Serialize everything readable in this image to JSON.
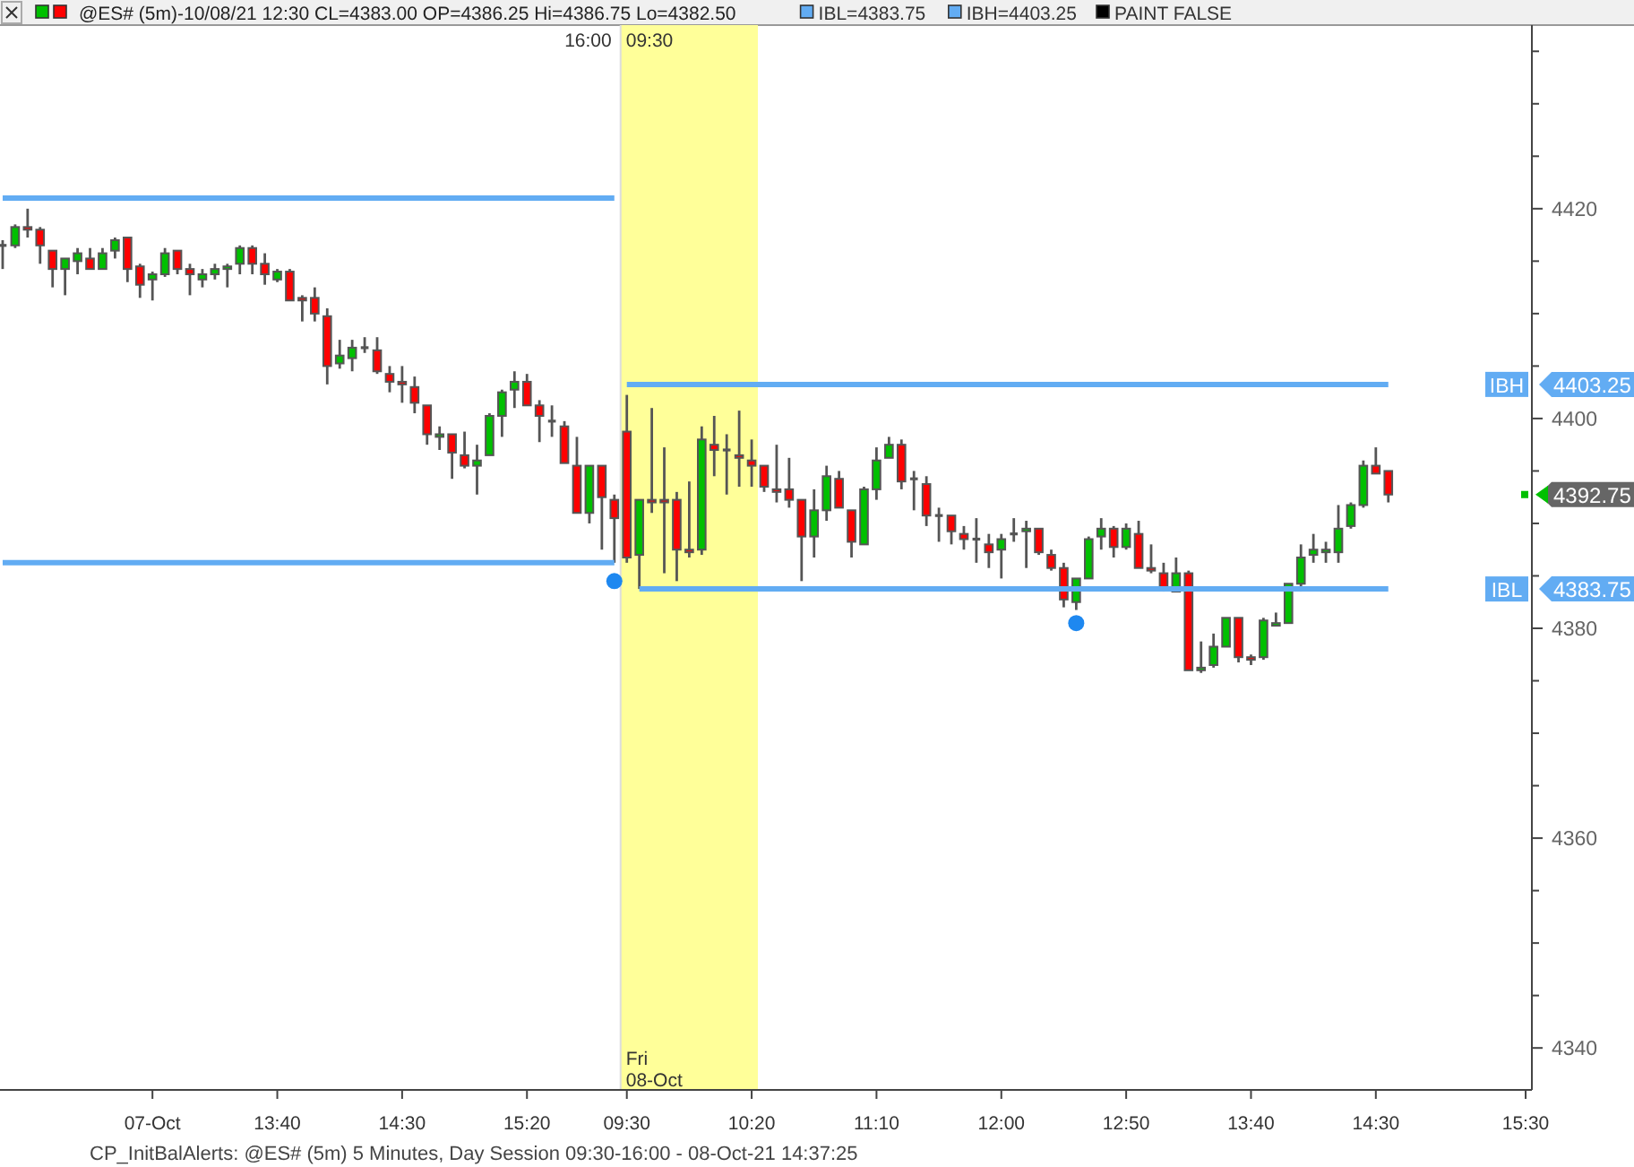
{
  "chart_data": {
    "type": "candlestick",
    "title": "@ES# (5m)-10/08/21 12:30 CL=4383.00 OP=4386.25 Hi=4386.75 Lo=4382.50",
    "annotations": [
      "IBL=4383.75",
      "IBH=4403.25",
      "PAINT FALSE",
      "16:00",
      "09:30",
      "Fri",
      "08-Oct",
      "CP_InitBalAlerts: @ES# (5m) 5 Minutes, Day Session 09:30-16:00 - 08-Oct-21 14:37:25",
      "4392.75",
      "4403.25",
      "4383.75"
    ],
    "categories": [
      null,
      null,
      null,
      null,
      null,
      null,
      null,
      null,
      null,
      null,
      null,
      null,
      "07-Oct",
      null,
      null,
      null,
      null,
      null,
      null,
      null,
      null,
      null,
      "13:40",
      null,
      null,
      null,
      null,
      null,
      null,
      null,
      null,
      null,
      "14:30",
      null,
      null,
      null,
      null,
      null,
      null,
      null,
      null,
      null,
      "15:20",
      null,
      null,
      null,
      null,
      null,
      null,
      null,
      "09:30",
      null,
      null,
      null,
      null,
      null,
      null,
      null,
      null,
      null,
      "10:20",
      null,
      null,
      null,
      null,
      null,
      null,
      null,
      null,
      null,
      "11:10",
      null,
      null,
      null,
      null,
      null,
      null,
      null,
      null,
      null,
      "12:00",
      null,
      null,
      null,
      null,
      null,
      null,
      null,
      null,
      null,
      "12:50",
      null,
      null,
      null,
      null,
      null,
      null,
      null,
      null,
      null,
      "13:40",
      null,
      null,
      null,
      null,
      null,
      null,
      null,
      null,
      null,
      "14:30",
      null,
      null,
      null,
      null,
      null,
      null,
      null,
      null,
      null,
      null,
      null,
      "15:30"
    ],
    "ohlc": [
      [
        4416.5,
        4417,
        4414.25,
        4416.5
      ],
      [
        4416.5,
        4418.5,
        4416.25,
        4418.25
      ],
      [
        4418.25,
        4420,
        4417.25,
        4418
      ],
      [
        4418,
        4418.25,
        4414.75,
        4416.5
      ],
      [
        4416,
        4416,
        4412.5,
        4414.25
      ],
      [
        4414.25,
        4415.25,
        4411.75,
        4415.25
      ],
      [
        4415,
        4416.25,
        4413.75,
        4415.75
      ],
      [
        4415.25,
        4416.25,
        4414.25,
        4414.25
      ],
      [
        4414.25,
        4416.25,
        4414.25,
        4415.75
      ],
      [
        4416,
        4417.25,
        4415.25,
        4417
      ],
      [
        4417.25,
        4417.25,
        4413,
        4414.25
      ],
      [
        4414.5,
        4414.75,
        4411.5,
        4412.75
      ],
      [
        4413.25,
        4414,
        4411.25,
        4413.75
      ],
      [
        4413.75,
        4416.25,
        4413.5,
        4415.75
      ],
      [
        4416,
        4416,
        4413.75,
        4414.25
      ],
      [
        4414.25,
        4414.75,
        4411.75,
        4413.75
      ],
      [
        4413.25,
        4414.25,
        4412.5,
        4413.75
      ],
      [
        4413.75,
        4414.75,
        4413.25,
        4414.25
      ],
      [
        4414.25,
        4414.75,
        4412.5,
        4414.5
      ],
      [
        4414.75,
        4416.5,
        4413.75,
        4416.25
      ],
      [
        4416.25,
        4416.5,
        4413.75,
        4414.75
      ],
      [
        4414.75,
        4415.75,
        4412.75,
        4413.75
      ],
      [
        4413.25,
        4414.25,
        4413,
        4414
      ],
      [
        4414,
        4414.25,
        4411.25,
        4411.25
      ],
      [
        4411.5,
        4411.75,
        4409.25,
        4411.25
      ],
      [
        4411.5,
        4412.5,
        4409.25,
        4410
      ],
      [
        4409.75,
        4410.5,
        4403.25,
        4405
      ],
      [
        4405.25,
        4407.5,
        4404.75,
        4406
      ],
      [
        4405.75,
        4407.5,
        4404.5,
        4406.75
      ],
      [
        4406.75,
        4407.75,
        4406.25,
        4406.75
      ],
      [
        4406.5,
        4407.75,
        4404.25,
        4404.5
      ],
      [
        4404.25,
        4405,
        4402.5,
        4403.5
      ],
      [
        4403.5,
        4405,
        4401.5,
        4403.25
      ],
      [
        4403,
        4404,
        4400.5,
        4401.5
      ],
      [
        4401.25,
        4401.25,
        4397.5,
        4398.5
      ],
      [
        4398.25,
        4399.25,
        4397,
        4398.5
      ],
      [
        4398.5,
        4398.5,
        4394.25,
        4396.75
      ],
      [
        4396.5,
        4398.75,
        4395.25,
        4395.5
      ],
      [
        4395.5,
        4397.5,
        4392.75,
        4396
      ],
      [
        4396.5,
        4400.5,
        4396.5,
        4400.25
      ],
      [
        4400.25,
        4402.75,
        4398.25,
        4402.5
      ],
      [
        4402.75,
        4404.5,
        4401,
        4403.5
      ],
      [
        4403.5,
        4404.25,
        4401.25,
        4401.25
      ],
      [
        4401.25,
        4401.75,
        4397.75,
        4400.25
      ],
      [
        4399.75,
        4401.25,
        4398.25,
        4399.75
      ],
      [
        4399.25,
        4399.75,
        4395.75,
        4395.75
      ],
      [
        4395.5,
        4398.25,
        4391,
        4391
      ],
      [
        4391,
        4395.5,
        4390,
        4395.5
      ],
      [
        4395.5,
        4395.5,
        4387.5,
        4392.5
      ],
      [
        4392.25,
        4392.75,
        4386.25,
        4390.5
      ],
      [
        4398.75,
        4402.25,
        4386.25,
        4386.75
      ],
      [
        4387,
        4392.25,
        4383.75,
        4392.25
      ],
      [
        4392.25,
        4401,
        4391,
        4392
      ],
      [
        4392.25,
        4397.25,
        4385.25,
        4392
      ],
      [
        4392.25,
        4393,
        4384.5,
        4387.5
      ],
      [
        4387.5,
        4394,
        4386.75,
        4387.25
      ],
      [
        4387.5,
        4399.25,
        4387,
        4398
      ],
      [
        4397.5,
        4400.25,
        4394.5,
        4397
      ],
      [
        4397,
        4398.5,
        4392.75,
        4397
      ],
      [
        4396.5,
        4400.75,
        4393.5,
        4396.25
      ],
      [
        4396,
        4398,
        4393.5,
        4395.5
      ],
      [
        4395.5,
        4395.5,
        4393,
        4393.5
      ],
      [
        4393.25,
        4397.5,
        4392,
        4393
      ],
      [
        4393.25,
        4396.25,
        4391.5,
        4392.25
      ],
      [
        4392.25,
        4392.25,
        4384.5,
        4388.75
      ],
      [
        4388.75,
        4393.25,
        4386.75,
        4391.25
      ],
      [
        4391.25,
        4395.5,
        4390.25,
        4394.5
      ],
      [
        4394.25,
        4395,
        4391.5,
        4391.5
      ],
      [
        4391.25,
        4391.25,
        4386.75,
        4388.25
      ],
      [
        4388,
        4393.5,
        4388,
        4393.25
      ],
      [
        4393.25,
        4397.25,
        4392.25,
        4396
      ],
      [
        4396.25,
        4398.25,
        4396.25,
        4397.5
      ],
      [
        4397.5,
        4398,
        4393.25,
        4394
      ],
      [
        4394.25,
        4395,
        4391.25,
        4394.25
      ],
      [
        4393.75,
        4394.5,
        4389.75,
        4390.75
      ],
      [
        4390.75,
        4391.5,
        4388.25,
        4390.75
      ],
      [
        4390.75,
        4390.75,
        4388,
        4389.25
      ],
      [
        4389,
        4389.75,
        4387.5,
        4388.5
      ],
      [
        4388.5,
        4390.5,
        4386.25,
        4388.5
      ],
      [
        4388,
        4389,
        4385.75,
        4387.25
      ],
      [
        4387.5,
        4389,
        4384.75,
        4388.5
      ],
      [
        4389,
        4390.5,
        4388.25,
        4389
      ],
      [
        4389.25,
        4390.25,
        4385.75,
        4389.5
      ],
      [
        4389.5,
        4389.5,
        4387,
        4387.25
      ],
      [
        4387,
        4387.5,
        4385.5,
        4385.75
      ],
      [
        4385.75,
        4386.25,
        4382,
        4382.75
      ],
      [
        4382.5,
        4384.75,
        4381.75,
        4384.75
      ],
      [
        4384.75,
        4388.75,
        4384.75,
        4388.5
      ],
      [
        4388.75,
        4390.5,
        4387.5,
        4389.5
      ],
      [
        4389.5,
        4389.75,
        4386.75,
        4387.75
      ],
      [
        4387.75,
        4390,
        4387.5,
        4389.5
      ],
      [
        4389,
        4390.25,
        4385.75,
        4385.75
      ],
      [
        4385.75,
        4388,
        4385.25,
        4385.5
      ],
      [
        4385.25,
        4386.25,
        4383.5,
        4383.75
      ],
      [
        4383.5,
        4386.75,
        4383.5,
        4385.25
      ],
      [
        4385.25,
        4385.5,
        4376,
        4376
      ],
      [
        4376,
        4378.75,
        4375.75,
        4376.25
      ],
      [
        4376.5,
        4379.5,
        4376.25,
        4378.25
      ],
      [
        4378.25,
        4381,
        4378.25,
        4381
      ],
      [
        4381,
        4381,
        4376.75,
        4377.25
      ],
      [
        4377.25,
        4377.5,
        4376.5,
        4377
      ],
      [
        4377.25,
        4381,
        4377,
        4380.75
      ],
      [
        4380.25,
        4381.5,
        4380.25,
        4380.5
      ],
      [
        4380.5,
        4384.25,
        4380.5,
        4384.25
      ],
      [
        4384.25,
        4388,
        4383.5,
        4386.75
      ],
      [
        4387,
        4389,
        4386.25,
        4387.5
      ],
      [
        4387.25,
        4388.25,
        4386.25,
        4387.5
      ],
      [
        4387.25,
        4391.75,
        4386.25,
        4389.5
      ],
      [
        4389.75,
        4392,
        4389.5,
        4391.75
      ],
      [
        4391.75,
        4396,
        4391.5,
        4395.5
      ],
      [
        4395.5,
        4397.25,
        4394.75,
        4394.75
      ],
      [
        4395,
        4395,
        4392,
        4392.75
      ],
      null,
      null,
      null,
      null,
      null,
      null,
      null,
      null,
      null,
      null,
      null
    ],
    "series": [
      {
        "type": "line",
        "color": "#62acf3",
        "values": [
          4421,
          4421,
          4421,
          4421,
          4421,
          4421,
          4421,
          4421,
          4421,
          4421,
          4421,
          4421,
          4421,
          4421,
          4421,
          4421,
          4421,
          4421,
          4421,
          4421,
          4421,
          4421,
          4421,
          4421,
          4421,
          4421,
          4421,
          4421,
          4421,
          4421,
          4421,
          4421,
          4421,
          4421,
          4421,
          4421,
          4421,
          4421,
          4421,
          4421,
          4421,
          4421,
          4421,
          4421,
          4421,
          4421,
          4421,
          4421,
          4421,
          4421,
          null,
          null,
          null,
          null,
          null,
          null,
          null,
          null,
          null,
          null,
          null,
          null,
          null,
          null,
          null,
          null,
          null,
          null,
          null,
          null,
          null,
          null,
          null,
          null,
          null,
          null,
          null,
          null,
          null,
          null,
          null,
          null,
          null,
          null,
          null,
          null,
          null,
          null,
          null,
          null,
          null,
          null,
          null,
          null,
          null,
          null,
          null,
          null,
          null,
          null,
          null,
          null,
          null,
          null,
          null,
          null,
          null,
          null,
          null,
          null,
          null,
          null,
          null,
          null,
          null,
          null,
          null,
          null,
          null,
          null,
          null,
          null,
          null
        ]
      },
      {
        "type": "line",
        "color": "#62acf3",
        "values": [
          4386.25,
          4386.25,
          4386.25,
          4386.25,
          4386.25,
          4386.25,
          4386.25,
          4386.25,
          4386.25,
          4386.25,
          4386.25,
          4386.25,
          4386.25,
          4386.25,
          4386.25,
          4386.25,
          4386.25,
          4386.25,
          4386.25,
          4386.25,
          4386.25,
          4386.25,
          4386.25,
          4386.25,
          4386.25,
          4386.25,
          4386.25,
          4386.25,
          4386.25,
          4386.25,
          4386.25,
          4386.25,
          4386.25,
          4386.25,
          4386.25,
          4386.25,
          4386.25,
          4386.25,
          4386.25,
          4386.25,
          4386.25,
          4386.25,
          4386.25,
          4386.25,
          4386.25,
          4386.25,
          4386.25,
          4386.25,
          4386.25,
          4386.25,
          null,
          null,
          null,
          null,
          null,
          null,
          null,
          null,
          null,
          null,
          null,
          null,
          null,
          null,
          null,
          null,
          null,
          null,
          null,
          null,
          null,
          null,
          null,
          null,
          null,
          null,
          null,
          null,
          null,
          null,
          null,
          null,
          null,
          null,
          null,
          null,
          null,
          null,
          null,
          null,
          null,
          null,
          null,
          null,
          null,
          null,
          null,
          null,
          null,
          null,
          null,
          null,
          null,
          null,
          null,
          null,
          null,
          null,
          null,
          null,
          null,
          null,
          null,
          null,
          null,
          null,
          null,
          null,
          null,
          null,
          null,
          null,
          null
        ]
      },
      {
        "type": "line",
        "name": "IBH",
        "color": "#62acf3",
        "values": [
          null,
          null,
          null,
          null,
          null,
          null,
          null,
          null,
          null,
          null,
          null,
          null,
          null,
          null,
          null,
          null,
          null,
          null,
          null,
          null,
          null,
          null,
          null,
          null,
          null,
          null,
          null,
          null,
          null,
          null,
          null,
          null,
          null,
          null,
          null,
          null,
          null,
          null,
          null,
          null,
          null,
          null,
          null,
          null,
          null,
          null,
          null,
          null,
          null,
          null,
          4403.25,
          4403.25,
          4403.25,
          4403.25,
          4403.25,
          4403.25,
          4403.25,
          4403.25,
          4403.25,
          4403.25,
          4403.25,
          4403.25,
          4403.25,
          4403.25,
          4403.25,
          4403.25,
          4403.25,
          4403.25,
          4403.25,
          4403.25,
          4403.25,
          4403.25,
          4403.25,
          4403.25,
          4403.25,
          4403.25,
          4403.25,
          4403.25,
          4403.25,
          4403.25,
          4403.25,
          4403.25,
          4403.25,
          4403.25,
          4403.25,
          4403.25,
          4403.25,
          4403.25,
          4403.25,
          4403.25,
          4403.25,
          4403.25,
          4403.25,
          4403.25,
          4403.25,
          4403.25,
          4403.25,
          4403.25,
          4403.25,
          4403.25,
          4403.25,
          4403.25,
          4403.25,
          4403.25,
          4403.25,
          4403.25,
          4403.25,
          4403.25,
          4403.25,
          4403.25,
          4403.25,
          4403.25,
          null,
          null,
          null,
          null,
          null,
          null,
          null,
          null,
          null,
          null,
          null
        ]
      },
      {
        "type": "line",
        "name": "IBL",
        "color": "#62acf3",
        "values": [
          null,
          null,
          null,
          null,
          null,
          null,
          null,
          null,
          null,
          null,
          null,
          null,
          null,
          null,
          null,
          null,
          null,
          null,
          null,
          null,
          null,
          null,
          null,
          null,
          null,
          null,
          null,
          null,
          null,
          null,
          null,
          null,
          null,
          null,
          null,
          null,
          null,
          null,
          null,
          null,
          null,
          null,
          null,
          null,
          null,
          null,
          null,
          null,
          null,
          null,
          null,
          4383.75,
          4383.75,
          4383.75,
          4383.75,
          4383.75,
          4383.75,
          4383.75,
          4383.75,
          4383.75,
          4383.75,
          4383.75,
          4383.75,
          4383.75,
          4383.75,
          4383.75,
          4383.75,
          4383.75,
          4383.75,
          4383.75,
          4383.75,
          4383.75,
          4383.75,
          4383.75,
          4383.75,
          4383.75,
          4383.75,
          4383.75,
          4383.75,
          4383.75,
          4383.75,
          4383.75,
          4383.75,
          4383.75,
          4383.75,
          4383.75,
          4383.75,
          4383.75,
          4383.75,
          4383.75,
          4383.75,
          4383.75,
          4383.75,
          4383.75,
          4383.75,
          4383.75,
          4383.75,
          4383.75,
          4383.75,
          4383.75,
          4383.75,
          4383.75,
          4383.75,
          4383.75,
          4383.75,
          4383.75,
          4383.75,
          4383.75,
          4383.75,
          4383.75,
          4383.75,
          4383.75,
          null,
          null,
          null,
          null,
          null,
          null,
          null,
          null,
          null,
          null,
          null
        ]
      },
      {
        "type": "scatter",
        "color": "#1e88f0",
        "values": [
          null,
          null,
          null,
          null,
          null,
          null,
          null,
          null,
          null,
          null,
          null,
          null,
          null,
          null,
          null,
          null,
          null,
          null,
          null,
          null,
          null,
          null,
          null,
          null,
          null,
          null,
          null,
          null,
          null,
          null,
          null,
          null,
          null,
          null,
          null,
          null,
          null,
          null,
          null,
          null,
          null,
          null,
          null,
          null,
          null,
          null,
          null,
          null,
          null,
          4384.5,
          null,
          null,
          null,
          null,
          null,
          null,
          null,
          null,
          null,
          null,
          null,
          null,
          null,
          null,
          null,
          null,
          null,
          null,
          null,
          null,
          null,
          null,
          null,
          null,
          null,
          null,
          null,
          null,
          null,
          null,
          null,
          null,
          null,
          null,
          null,
          null,
          4380.5,
          null,
          null,
          null,
          null,
          null,
          null,
          null,
          null,
          null,
          null,
          null,
          null,
          null,
          null,
          null,
          null,
          null,
          null,
          null,
          null,
          null,
          null,
          null,
          null,
          null,
          null,
          null,
          null,
          null,
          null,
          null,
          null,
          null,
          null,
          null,
          null
        ]
      }
    ],
    "bands": [
      {
        "axis": "x",
        "from": "09:30",
        "to": "10:20",
        "color": "#ffff99"
      }
    ],
    "ylim": [
      4336,
      4437.5
    ],
    "yticks": [
      4340,
      {
        "value": 4345,
        "label": null
      },
      {
        "value": 4350,
        "label": null
      },
      {
        "value": 4355,
        "label": null
      },
      4360,
      {
        "value": 4365,
        "label": null
      },
      {
        "value": 4370,
        "label": null
      },
      {
        "value": 4375,
        "label": null
      },
      4380,
      {
        "value": 4385,
        "label": null
      },
      {
        "value": 4390,
        "label": null
      },
      {
        "value": 4395,
        "label": null
      },
      4400,
      {
        "value": 4405,
        "label": null
      },
      {
        "value": 4410,
        "label": null
      },
      {
        "value": 4415,
        "label": null
      },
      4420,
      {
        "value": 4425,
        "label": null
      },
      {
        "value": 4430,
        "label": null
      },
      {
        "value": 4435,
        "label": null
      }
    ],
    "grid": false,
    "legend": "right"
  }
}
